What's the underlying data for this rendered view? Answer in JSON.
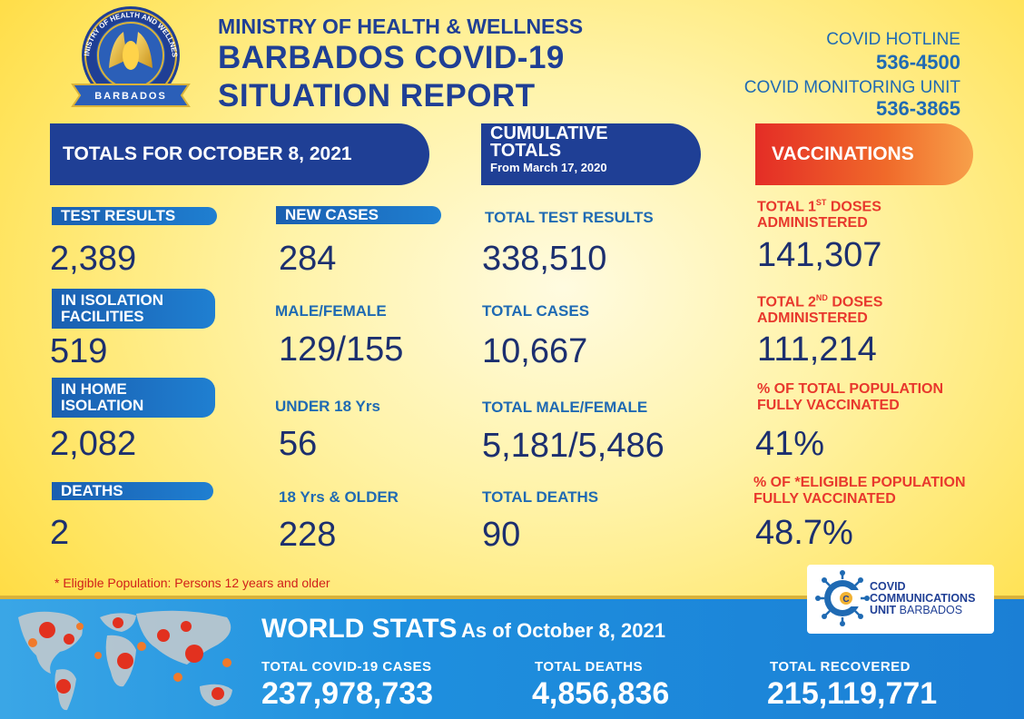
{
  "header": {
    "seal": {
      "top_text": "MINISTRY OF HEALTH AND WELLNESS",
      "bottom_text": "BARBADOS"
    },
    "ministry": "MINISTRY OF HEALTH & WELLNESS",
    "title_line1": "BARBADOS COVID-19",
    "title_line2": "SITUATION REPORT",
    "hotline_label": "COVID HOTLINE",
    "hotline_number": "536-4500",
    "monitoring_label": "COVID MONITORING UNIT",
    "monitoring_number": "536-3865"
  },
  "banners": {
    "totals": "TOTALS FOR OCTOBER 8, 2021",
    "cumulative_line1": "CUMULATIVE",
    "cumulative_line2": "TOTALS",
    "cumulative_sub": "From March 17, 2020",
    "vaccinations": "VACCINATIONS"
  },
  "daily": {
    "test_results_label": "TEST RESULTS",
    "test_results_value": "2,389",
    "isolation_facilities_label_1": "IN ISOLATION",
    "isolation_facilities_label_2": "FACILITIES",
    "isolation_facilities_value": "519",
    "home_isolation_label_1": "IN HOME",
    "home_isolation_label_2": "ISOLATION",
    "home_isolation_value": "2,082",
    "deaths_label": "DEATHS",
    "deaths_value": "2",
    "new_cases_label": "NEW CASES",
    "new_cases_value": "284",
    "male_female_label": "MALE/FEMALE",
    "male_female_value": "129/155",
    "under_18_label": "UNDER  18 Yrs",
    "under_18_value": "56",
    "over_18_label": "18 Yrs & OLDER",
    "over_18_value": "228"
  },
  "cumulative": {
    "test_results_label": "TOTAL TEST RESULTS",
    "test_results_value": "338,510",
    "cases_label": "TOTAL CASES",
    "cases_value": "10,667",
    "male_female_label": "TOTAL MALE/FEMALE",
    "male_female_value": "5,181/5,486",
    "deaths_label": "TOTAL DEATHS",
    "deaths_value": "90"
  },
  "vaccinations": {
    "first_doses_label_a": "TOTAL 1",
    "first_doses_label_sup": "ST",
    "first_doses_label_b": " DOSES",
    "first_doses_label_2": "ADMINISTERED",
    "first_doses_value": "141,307",
    "second_doses_label_a": "TOTAL 2",
    "second_doses_label_sup": "ND",
    "second_doses_label_b": " DOSES",
    "second_doses_label_2": "ADMINISTERED",
    "second_doses_value": "111,214",
    "pop_label_1": "% OF TOTAL POPULATION",
    "pop_label_2": "FULLY VACCINATED",
    "pop_value": "41%",
    "eligible_label_1": "% OF *ELIGIBLE POPULATION",
    "eligible_label_2": "FULLY VACCINATED",
    "eligible_value": "48.7%"
  },
  "footnote": "* Eligible Population: Persons 12 years and older",
  "world": {
    "title": "WORLD STATS",
    "as_of": "As of October 8, 2021",
    "cases_label": "TOTAL  COVID-19  CASES",
    "cases_value": "237,978,733",
    "deaths_label": "TOTAL  DEATHS",
    "deaths_value": "4,856,836",
    "recovered_label": "TOTAL  RECOVERED",
    "recovered_value": "215,119,771"
  },
  "ccu_logo": {
    "line1": "COVID",
    "line2": "COMMUNICATIONS",
    "line3_bold": "UNIT",
    "line3_rest": " BARBADOS",
    "mark_letter": "C"
  },
  "colors": {
    "navy": "#1f3f95",
    "blue": "#1f6ab3",
    "red": "#e8382d",
    "value": "#1c2f6f"
  }
}
